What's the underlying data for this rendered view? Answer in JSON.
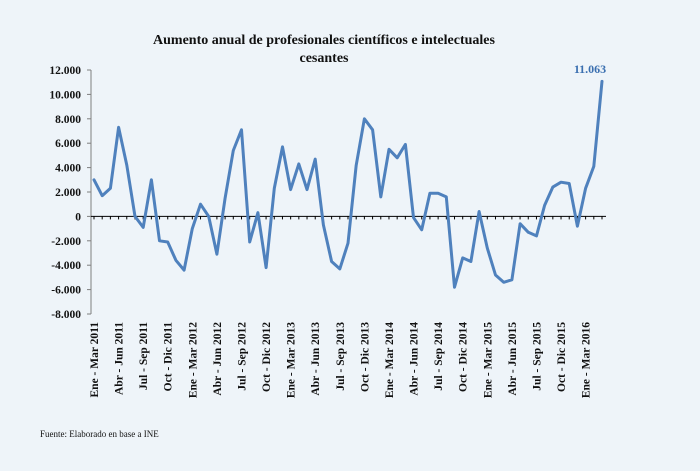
{
  "chart_data": {
    "type": "line",
    "title_line1": "Aumento anual de profesionales científicos e intelectuales",
    "title_line2": "cesantes",
    "source": "Fuente: Elaborado en base a INE",
    "ylim": [
      -8000,
      12000
    ],
    "yticks": [
      12000,
      10000,
      8000,
      6000,
      4000,
      2000,
      0,
      -2000,
      -4000,
      -6000,
      -8000
    ],
    "ytick_labels": [
      "12.000",
      "10.000",
      "8.000",
      "6.000",
      "4.000",
      "2.000",
      "0",
      "-2.000",
      "-4.000",
      "-6.000",
      "-8.000"
    ],
    "xtick_labels": [
      "Ene - Mar 2011",
      "Abr - Jun 2011",
      "Jul - Sep 2011",
      "Oct - Dic 2011",
      "Ene - Mar 2012",
      "Abr - Jun 2012",
      "Jul - Sep 2012",
      "Oct - Dic 2012",
      "Ene - Mar 2013",
      "Abr - Jun 2013",
      "Jul - Sep 2013",
      "Oct - Dic 2013",
      "Ene - Mar 2014",
      "Abr - Jun 2014",
      "Jul - Sep 2014",
      "Oct - Dic 2014",
      "Ene - Mar 2015",
      "Abr - Jun 2015",
      "Jul - Sep 2015",
      "Oct - Dic 2015",
      "Ene - Mar 2016"
    ],
    "annotation": "11.063",
    "series_color": "#4f81bd",
    "values": [
      3000,
      1700,
      2300,
      7300,
      4200,
      0,
      -900,
      3000,
      -2000,
      -2100,
      -3600,
      -4400,
      -1000,
      1000,
      0,
      -3100,
      1500,
      5400,
      7100,
      -2100,
      300,
      -4200,
      2300,
      5700,
      2200,
      4300,
      2200,
      4700,
      -700,
      -3700,
      -4300,
      -2200,
      4200,
      8000,
      7100,
      1600,
      5500,
      4800,
      5900,
      -100,
      -1100,
      1900,
      1900,
      1600,
      -5800,
      -3400,
      -3700,
      400,
      -2600,
      -4800,
      -5400,
      -5200,
      -600,
      -1300,
      -1600,
      900,
      2400,
      2800,
      2700,
      -800,
      2300,
      4100,
      11063
    ]
  }
}
